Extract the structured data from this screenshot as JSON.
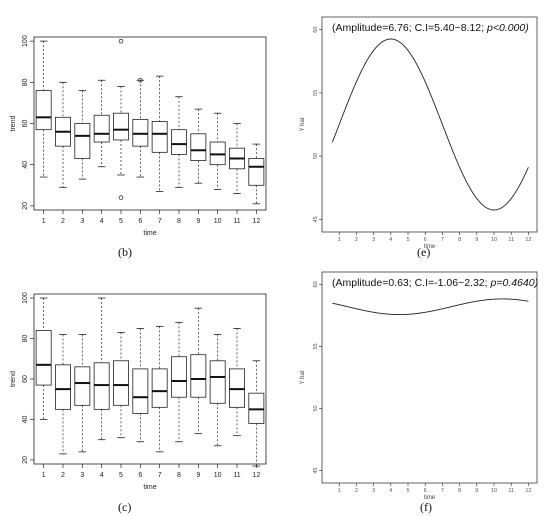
{
  "panel_labels": {
    "b": "(b)",
    "c": "(c)",
    "e": "(e)",
    "f": "(f)"
  },
  "chart_data": [
    {
      "id": "b",
      "type": "box",
      "xlabel": "time",
      "ylabel": "trend",
      "categories": [
        "1",
        "2",
        "3",
        "4",
        "5",
        "6",
        "7",
        "8",
        "9",
        "10",
        "11",
        "12"
      ],
      "ylim": [
        18,
        102
      ],
      "yticks": [
        20,
        40,
        60,
        80,
        100
      ],
      "boxes": [
        {
          "min": 34,
          "q1": 57,
          "median": 63,
          "q3": 76,
          "max": 100,
          "outliers": []
        },
        {
          "min": 29,
          "q1": 49,
          "median": 56,
          "q3": 63,
          "max": 80,
          "outliers": []
        },
        {
          "min": 33,
          "q1": 43,
          "median": 54,
          "q3": 60,
          "max": 76,
          "outliers": []
        },
        {
          "min": 39,
          "q1": 51,
          "median": 55,
          "q3": 64,
          "max": 81,
          "outliers": []
        },
        {
          "min": 35,
          "q1": 52,
          "median": 57,
          "q3": 65,
          "max": 78,
          "outliers": [
            100,
            24
          ]
        },
        {
          "min": 34,
          "q1": 49,
          "median": 55,
          "q3": 62,
          "max": 81,
          "outliers": [
            81
          ]
        },
        {
          "min": 27,
          "q1": 46,
          "median": 55,
          "q3": 61,
          "max": 83,
          "outliers": []
        },
        {
          "min": 29,
          "q1": 45,
          "median": 50,
          "q3": 57,
          "max": 73,
          "outliers": []
        },
        {
          "min": 31,
          "q1": 42,
          "median": 47,
          "q3": 55,
          "max": 67,
          "outliers": []
        },
        {
          "min": 28,
          "q1": 40,
          "median": 45,
          "q3": 51,
          "max": 65,
          "outliers": []
        },
        {
          "min": 26,
          "q1": 38,
          "median": 43,
          "q3": 48,
          "max": 60,
          "outliers": []
        },
        {
          "min": 21,
          "q1": 30,
          "median": 39,
          "q3": 43,
          "max": 50,
          "outliers": []
        }
      ]
    },
    {
      "id": "c",
      "type": "box",
      "xlabel": "time",
      "ylabel": "trend",
      "categories": [
        "1",
        "2",
        "3",
        "4",
        "5",
        "6",
        "7",
        "8",
        "9",
        "10",
        "11",
        "12"
      ],
      "ylim": [
        18,
        102
      ],
      "yticks": [
        20,
        40,
        60,
        80,
        100
      ],
      "boxes": [
        {
          "min": 40,
          "q1": 57,
          "median": 67,
          "q3": 84,
          "max": 100,
          "outliers": []
        },
        {
          "min": 23,
          "q1": 45,
          "median": 55,
          "q3": 67,
          "max": 82,
          "outliers": []
        },
        {
          "min": 24,
          "q1": 47,
          "median": 58,
          "q3": 66,
          "max": 82,
          "outliers": []
        },
        {
          "min": 30,
          "q1": 45,
          "median": 57,
          "q3": 68,
          "max": 100,
          "outliers": []
        },
        {
          "min": 31,
          "q1": 47,
          "median": 57,
          "q3": 69,
          "max": 83,
          "outliers": []
        },
        {
          "min": 29,
          "q1": 43,
          "median": 51,
          "q3": 65,
          "max": 85,
          "outliers": []
        },
        {
          "min": 24,
          "q1": 46,
          "median": 54,
          "q3": 65,
          "max": 86,
          "outliers": []
        },
        {
          "min": 29,
          "q1": 51,
          "median": 59,
          "q3": 71,
          "max": 88,
          "outliers": []
        },
        {
          "min": 33,
          "q1": 51,
          "median": 60,
          "q3": 72,
          "max": 95,
          "outliers": []
        },
        {
          "min": 27,
          "q1": 48,
          "median": 61,
          "q3": 69,
          "max": 82,
          "outliers": []
        },
        {
          "min": 32,
          "q1": 46,
          "median": 55,
          "q3": 65,
          "max": 85,
          "outliers": []
        },
        {
          "min": 17,
          "q1": 38,
          "median": 45,
          "q3": 53,
          "max": 69,
          "outliers": []
        }
      ]
    },
    {
      "id": "e",
      "type": "line",
      "annotation": "(Amplitude=6.76; C.I=5.40~8.12; ",
      "annotation_p": "p<0.000)",
      "xlabel": "time",
      "ylabel": "Y hat",
      "xticks": [
        1,
        2,
        3,
        4,
        5,
        6,
        7,
        8,
        9,
        10,
        11,
        12
      ],
      "yticks": [
        45,
        50,
        55,
        60
      ],
      "ylim": [
        44,
        61
      ],
      "xlim": [
        0,
        12.5
      ],
      "curve": {
        "mean": 52.5,
        "amplitude": 6.76,
        "peak_time": 4
      }
    },
    {
      "id": "f",
      "type": "line",
      "annotation": "(Amplitude=0.63; C.I=-1.06~2.32; ",
      "annotation_p": "p=0.4640)",
      "xlabel": "time",
      "ylabel": "Y hat",
      "xticks": [
        1,
        2,
        3,
        4,
        5,
        6,
        7,
        8,
        9,
        10,
        11,
        12
      ],
      "yticks": [
        45,
        50,
        55,
        60
      ],
      "ylim": [
        44,
        61
      ],
      "xlim": [
        0,
        12.5
      ],
      "curve": {
        "mean": 58.2,
        "amplitude": 0.63,
        "peak_time": 10.5
      }
    }
  ]
}
